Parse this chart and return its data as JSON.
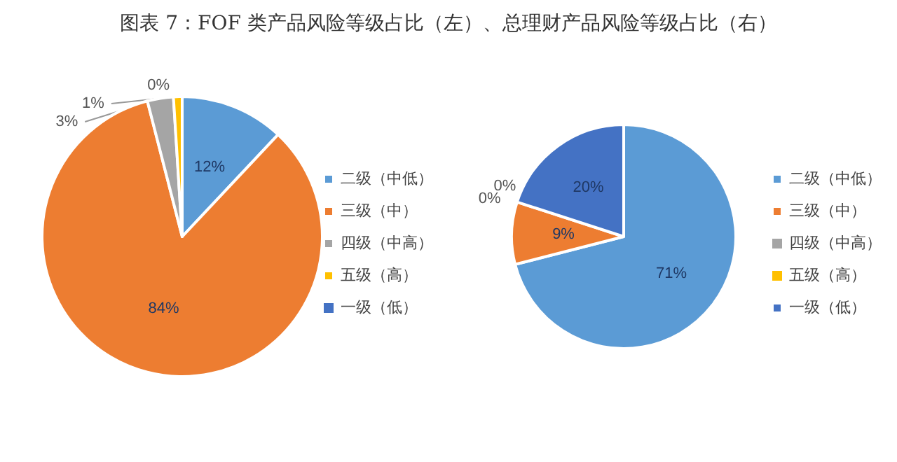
{
  "chart_data": [
    {
      "type": "pie",
      "title": "图表 7：FOF 类产品风险等级占比（左）、总理财产品风险等级占比（右）",
      "categories": [
        "二级（中低）",
        "三级（中）",
        "四级（中高）",
        "五级（高）",
        "一级（低）"
      ],
      "values": [
        12,
        84,
        3,
        1,
        0
      ],
      "value_labels": [
        "12%",
        "84%",
        "3%",
        "1%",
        "0%"
      ],
      "colors": [
        "#5b9bd5",
        "#ed7d31",
        "#a5a5a5",
        "#ffc000",
        "#4472c4"
      ],
      "legend": "right"
    },
    {
      "type": "pie",
      "categories": [
        "二级（中低）",
        "三级（中）",
        "四级（中高）",
        "五级（高）",
        "一级（低）"
      ],
      "values": [
        71,
        9,
        0,
        0,
        20
      ],
      "value_labels": [
        "71%",
        "9%",
        "0%",
        "0%",
        "20%"
      ],
      "colors": [
        "#5b9bd5",
        "#ed7d31",
        "#a5a5a5",
        "#ffc000",
        "#4472c4"
      ],
      "legend": "right"
    }
  ]
}
